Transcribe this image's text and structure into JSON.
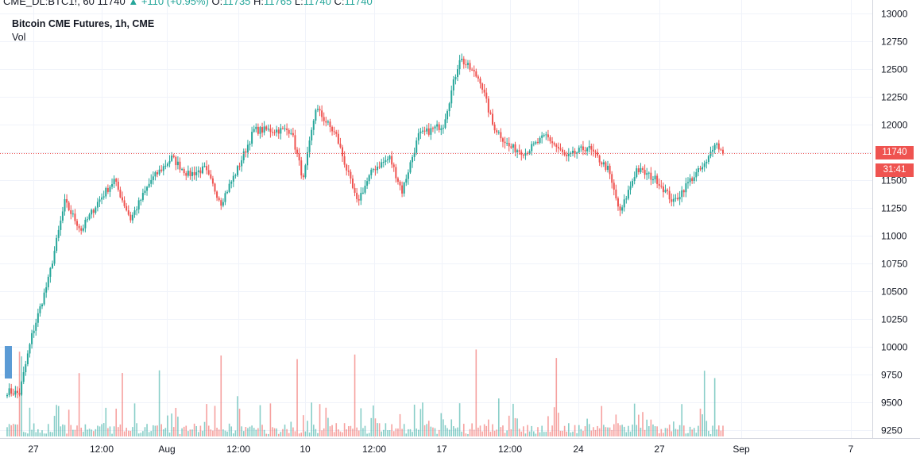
{
  "header": {
    "symbol": "CME_DL:BTC1!, 60",
    "last": "11740",
    "change": "+110 (+0.95%)",
    "o_label": "O:",
    "o_val": "11735",
    "h_label": "H:",
    "h_val": "11765",
    "l_label": "L:",
    "l_val": "11740",
    "c_label": "C:",
    "c_val": "11740"
  },
  "legend": {
    "title": "Bitcoin CME Futures, 1h, CME",
    "volume_label": "Vol"
  },
  "price_badge": {
    "price": "11740",
    "countdown": "31:41"
  },
  "colors": {
    "up": "#26a69a",
    "down": "#ef5350",
    "grid": "#f0f3fa",
    "axis_text": "#131722"
  },
  "chart_data": {
    "type": "candlestick",
    "title": "Bitcoin CME Futures, 1h, CME",
    "ylim": [
      9200,
      13000
    ],
    "y_ticks": [
      "13000",
      "12750",
      "12500",
      "12250",
      "12000",
      "11750",
      "11500",
      "11250",
      "11000",
      "10750",
      "10500",
      "10250",
      "10000",
      "9750",
      "9500",
      "9250"
    ],
    "x_ticks": [
      "27",
      "12:00",
      "Aug",
      "12:00",
      "10",
      "12:00",
      "17",
      "12:00",
      "24",
      "27",
      "Sep",
      "7"
    ],
    "last_price": 11740,
    "close_path": [
      {
        "i": 0,
        "v": 9600
      },
      {
        "i": 6,
        "v": 9580
      },
      {
        "i": 12,
        "v": 10100
      },
      {
        "i": 20,
        "v": 10600
      },
      {
        "i": 28,
        "v": 11300
      },
      {
        "i": 36,
        "v": 11050
      },
      {
        "i": 44,
        "v": 11300
      },
      {
        "i": 52,
        "v": 11500
      },
      {
        "i": 60,
        "v": 11150
      },
      {
        "i": 70,
        "v": 11500
      },
      {
        "i": 80,
        "v": 11700
      },
      {
        "i": 88,
        "v": 11550
      },
      {
        "i": 96,
        "v": 11600
      },
      {
        "i": 104,
        "v": 11300
      },
      {
        "i": 112,
        "v": 11600
      },
      {
        "i": 120,
        "v": 11950
      },
      {
        "i": 130,
        "v": 11950
      },
      {
        "i": 138,
        "v": 11950
      },
      {
        "i": 144,
        "v": 11500
      },
      {
        "i": 150,
        "v": 12150
      },
      {
        "i": 160,
        "v": 11900
      },
      {
        "i": 170,
        "v": 11300
      },
      {
        "i": 178,
        "v": 11600
      },
      {
        "i": 186,
        "v": 11700
      },
      {
        "i": 192,
        "v": 11400
      },
      {
        "i": 200,
        "v": 11900
      },
      {
        "i": 212,
        "v": 12000
      },
      {
        "i": 220,
        "v": 12600
      },
      {
        "i": 230,
        "v": 12400
      },
      {
        "i": 236,
        "v": 12000
      },
      {
        "i": 244,
        "v": 11800
      },
      {
        "i": 252,
        "v": 11750
      },
      {
        "i": 262,
        "v": 11900
      },
      {
        "i": 272,
        "v": 11700
      },
      {
        "i": 282,
        "v": 11800
      },
      {
        "i": 292,
        "v": 11600
      },
      {
        "i": 298,
        "v": 11200
      },
      {
        "i": 306,
        "v": 11600
      },
      {
        "i": 316,
        "v": 11500
      },
      {
        "i": 324,
        "v": 11300
      },
      {
        "i": 332,
        "v": 11500
      },
      {
        "i": 340,
        "v": 11650
      },
      {
        "i": 344,
        "v": 11850
      },
      {
        "i": 348,
        "v": 11740
      }
    ]
  }
}
